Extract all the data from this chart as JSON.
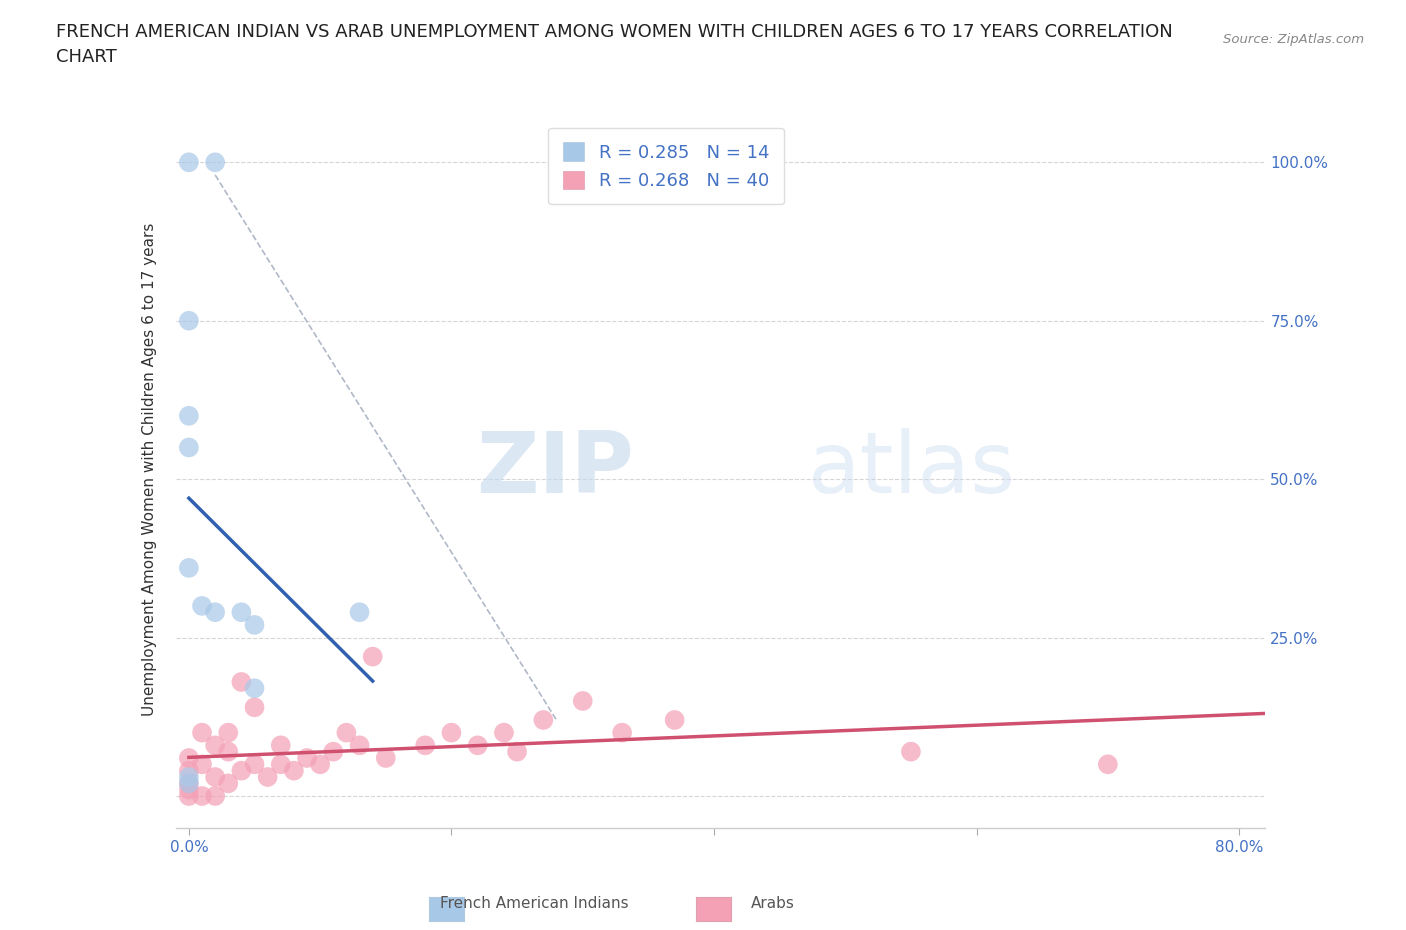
{
  "title": "FRENCH AMERICAN INDIAN VS ARAB UNEMPLOYMENT AMONG WOMEN WITH CHILDREN AGES 6 TO 17 YEARS CORRELATION\nCHART",
  "source": "Source: ZipAtlas.com",
  "ylabel": "Unemployment Among Women with Children Ages 6 to 17 years",
  "xlim": [
    -0.01,
    0.82
  ],
  "ylim": [
    -0.05,
    1.08
  ],
  "french_R": 0.285,
  "french_N": 14,
  "arab_R": 0.268,
  "arab_N": 40,
  "french_color": "#a8c8e8",
  "arab_color": "#f4a0b5",
  "french_line_color": "#3060b0",
  "arab_line_color": "#d05070",
  "french_scatter_x": [
    0.0,
    0.02,
    0.0,
    0.0,
    0.0,
    0.0,
    0.01,
    0.02,
    0.04,
    0.05,
    0.05,
    0.13,
    0.0,
    0.0
  ],
  "french_scatter_y": [
    1.0,
    1.0,
    0.75,
    0.6,
    0.55,
    0.36,
    0.3,
    0.29,
    0.29,
    0.27,
    0.17,
    0.29,
    0.03,
    0.02
  ],
  "arab_scatter_x": [
    0.0,
    0.0,
    0.0,
    0.0,
    0.0,
    0.01,
    0.01,
    0.01,
    0.02,
    0.02,
    0.02,
    0.03,
    0.03,
    0.03,
    0.04,
    0.04,
    0.05,
    0.05,
    0.06,
    0.07,
    0.07,
    0.08,
    0.09,
    0.1,
    0.11,
    0.12,
    0.13,
    0.14,
    0.15,
    0.18,
    0.2,
    0.22,
    0.24,
    0.25,
    0.27,
    0.3,
    0.33,
    0.37,
    0.55,
    0.7
  ],
  "arab_scatter_y": [
    0.0,
    0.01,
    0.02,
    0.04,
    0.06,
    0.0,
    0.05,
    0.1,
    0.0,
    0.03,
    0.08,
    0.02,
    0.07,
    0.1,
    0.04,
    0.18,
    0.05,
    0.14,
    0.03,
    0.05,
    0.08,
    0.04,
    0.06,
    0.05,
    0.07,
    0.1,
    0.08,
    0.22,
    0.06,
    0.08,
    0.1,
    0.08,
    0.1,
    0.07,
    0.12,
    0.15,
    0.1,
    0.12,
    0.07,
    0.05
  ],
  "watermark_zip": "ZIP",
  "watermark_atlas": "atlas",
  "background_color": "#ffffff",
  "grid_color": "#cccccc",
  "title_fontsize": 13,
  "label_fontsize": 11,
  "tick_fontsize": 11,
  "legend_label_french": "French American Indians",
  "legend_label_arab": "Arabs",
  "french_line_x0": 0.025,
  "french_line_y0": 0.25,
  "french_line_x1": 0.04,
  "french_line_y1": 0.73,
  "dashed_line_x": [
    0.02,
    0.28
  ],
  "dashed_line_y": [
    0.98,
    0.12
  ]
}
